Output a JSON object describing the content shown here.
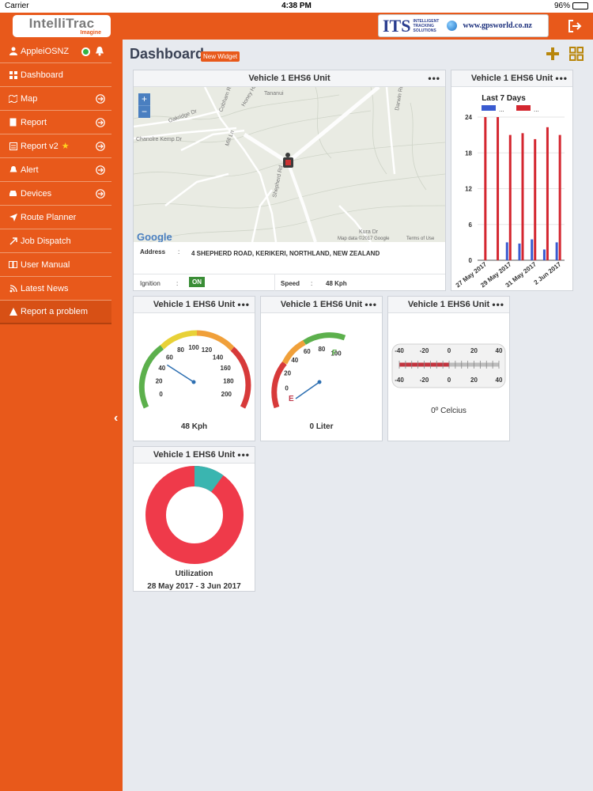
{
  "status_bar": {
    "carrier": "Carrier",
    "time": "4:38 PM",
    "battery": "96%",
    "battery_level": 0.96
  },
  "header": {
    "logo_main": "IntelliTrac",
    "logo_sub": "Imagine",
    "partner_letters": "ITS",
    "partner_name": "INTELLIGENT TRACKING SOLUTIONS",
    "partner_url": "www.gpsworld.co.nz"
  },
  "sidebar": {
    "user": "AppleiOSNZ",
    "items": [
      {
        "label": "Dashboard",
        "icon": "grid-icon",
        "arrow": false
      },
      {
        "label": "Map",
        "icon": "map-icon",
        "arrow": true
      },
      {
        "label": "Report",
        "icon": "document-icon",
        "arrow": true
      },
      {
        "label": "Report v2",
        "icon": "report-icon",
        "arrow": true,
        "star": true
      },
      {
        "label": "Alert",
        "icon": "bell-icon",
        "arrow": true
      },
      {
        "label": "Devices",
        "icon": "car-icon",
        "arrow": true
      },
      {
        "label": "Route Planner",
        "icon": "location-arrow-icon",
        "arrow": false
      },
      {
        "label": "Job Dispatch",
        "icon": "dispatch-icon",
        "arrow": false
      },
      {
        "label": "User Manual",
        "icon": "book-icon",
        "arrow": false
      },
      {
        "label": "Latest News",
        "icon": "news-icon",
        "arrow": false
      },
      {
        "label": "Report a problem",
        "icon": "warning-icon",
        "arrow": false
      }
    ]
  },
  "main": {
    "title": "Dashboard",
    "new_widget": "New Widget",
    "more": "•••"
  },
  "widgets": {
    "title": "Vehicle 1 EHS6 Unit",
    "map": {
      "roads": [
        "Cobham Rd",
        "Oakridge Dr",
        "Chanolre Kemp Dr",
        "Mill Ln",
        "Shepherd Rd",
        "Darwin Rd",
        "Honey Hill",
        "Tananui",
        "Kura Dr"
      ],
      "google": "Google",
      "credit": "Map data ©2017 Google",
      "terms": "Terms of Use",
      "address_label": "Address",
      "address_value": "4 SHEPHERD ROAD, KERIKERI, NORTHLAND, NEW ZEALAND",
      "ignition_label": "Ignition",
      "ignition_value": "ON",
      "speed_label": "Speed",
      "speed_value": "48 Kph",
      "colon": ":",
      "zoom_in": "+",
      "zoom_out": "−"
    },
    "speed_gauge": {
      "ticks": [
        "0",
        "20",
        "40",
        "60",
        "80",
        "100",
        "120",
        "140",
        "160",
        "180",
        "200"
      ],
      "value": 48,
      "max": 200,
      "label": "48 Kph"
    },
    "fuel_gauge": {
      "ticks": [
        "0",
        "20",
        "40",
        "60",
        "80",
        "100"
      ],
      "full": "F",
      "empty": "E",
      "value": 0,
      "label": "0 Liter"
    },
    "temp_gauge": {
      "ticks": [
        "-40",
        "-20",
        "0",
        "20",
        "40"
      ],
      "value": 0,
      "label": "0º Celcius"
    },
    "utilization": {
      "label": "Utilization",
      "range": "28 May 2017 - 3 Jun 2017",
      "used_fraction": 0.9,
      "colors": [
        "#ef3a4a",
        "#3ab5b0"
      ]
    }
  },
  "chart_data": {
    "type": "bar",
    "title": "Last 7 Days",
    "categories": [
      "27 May 2017",
      "28 May 2017",
      "29 May 2017",
      "30 May 2017",
      "31 May 2017",
      "1 Jun 2017",
      "2 Jun 2017"
    ],
    "x_tick_labels": [
      "27 May 2017",
      "29 May 2017",
      "31 May 2017",
      "2 Jun 2017"
    ],
    "series": [
      {
        "values": [
          0,
          0,
          3,
          2.8,
          3.5,
          1.8,
          3
        ],
        "color": "#3a5bd0"
      },
      {
        "values": [
          24,
          24,
          21,
          21.3,
          20.3,
          22.3,
          21
        ],
        "color": "#d4262f"
      }
    ],
    "legend_labels": [
      "...",
      "..."
    ],
    "yticks": [
      "0",
      "6",
      "12",
      "18",
      "24"
    ],
    "ylim": [
      0,
      24
    ],
    "legend": "top"
  }
}
